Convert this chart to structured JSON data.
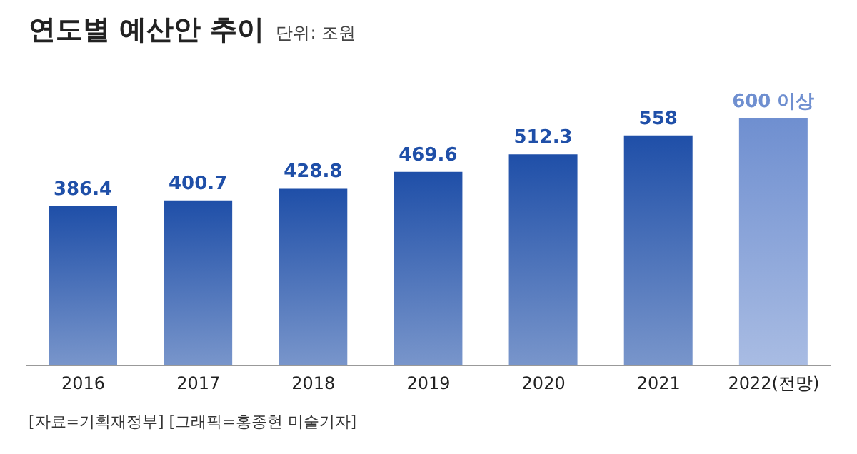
{
  "chart_data": {
    "type": "bar",
    "title": "연도별 예산안 추이",
    "subtitle": "단위: 조원",
    "categories": [
      "2016",
      "2017",
      "2018",
      "2019",
      "2020",
      "2021",
      "2022(전망)"
    ],
    "values": [
      386.4,
      400.7,
      428.8,
      469.6,
      512.3,
      558,
      600
    ],
    "colors": [
      "#1f4fa8",
      "#1f4fa8",
      "#1f4fa8",
      "#1f4fa8",
      "#1f4fa8",
      "#1f4fa8",
      "#6f8fd0"
    ],
    "value_labels": [
      "386.4",
      "400.7",
      "428.8",
      "469.6",
      "512.3",
      "558",
      "600 이상"
    ],
    "annotations": [
      "[자료=기획재정부] [그래픽=홍종현 미술기자]"
    ],
    "grid": false,
    "legend": false
  }
}
